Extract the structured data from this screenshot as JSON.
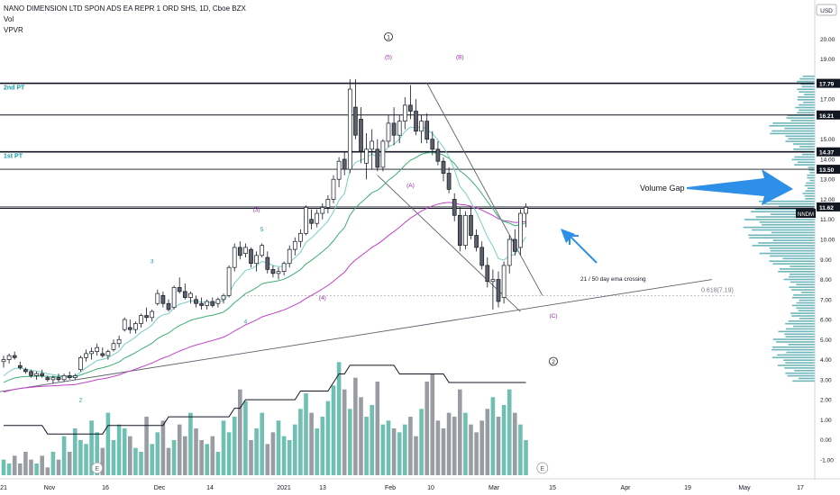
{
  "header": {
    "title": "NANO DIMENSION LTD SPON ADS EA REPR 1 ORD SHS, 1D, Cboe BZX",
    "indicator_vol": "Vol",
    "indicator_vpvr": "VPVR"
  },
  "colors": {
    "up_candle": "#ffffff",
    "down_candle": "#5d606b",
    "candle_border": "#131722",
    "vol_up": "#6fbfb3",
    "vol_down": "#9a9ca3",
    "ema_fast": "#79cec3",
    "ema_slow": "#3cae74",
    "ema_long": "#c043c7",
    "vpvr": "#3d9ea3",
    "arrow_blue": "#2d8fe8",
    "wave_label": "#9c27b0",
    "teal_label": "#159aa2",
    "price_tag_bg": "#131722"
  },
  "chart_data": {
    "type": "candlestick",
    "ylim": [
      -1.5,
      21.5
    ],
    "price_axis": {
      "unit_label": "USD",
      "ticks": [
        "20.00",
        "19.00",
        "17.00",
        "15.00",
        "14.00",
        "13.00",
        "12.00",
        "11.00",
        "10.00",
        "9.00",
        "8.00",
        "7.00",
        "6.00",
        "5.00",
        "4.00",
        "3.00",
        "2.00",
        "1.00",
        "0.00",
        "-1.00"
      ],
      "tagged": [
        {
          "label": "17.79",
          "value": 17.79
        },
        {
          "label": "16.21",
          "value": 16.21
        },
        {
          "label": "14.37",
          "value": 14.37
        },
        {
          "label": "13.50",
          "value": 13.5
        },
        {
          "label": "11.62",
          "value": 11.62
        }
      ],
      "symbol_tag": "NNDM"
    },
    "time_axis": {
      "ticks": [
        "21",
        "Nov",
        "16",
        "Dec",
        "14",
        "2021",
        "13",
        "Feb",
        "10",
        "Mar",
        "15",
        "Apr",
        "19",
        "May",
        "17"
      ]
    },
    "horizontal_levels": [
      17.79,
      16.21,
      14.37,
      13.5,
      11.62,
      11.55
    ],
    "level_labels": [
      {
        "text": "2nd PT",
        "value": 17.79
      },
      {
        "text": "1st PT",
        "value": 14.37
      }
    ],
    "fib_level": {
      "text": "0.618(7.19)",
      "value": 7.19
    },
    "candles": [
      [
        3.9,
        4.2,
        3.6,
        4.0
      ],
      [
        4.0,
        4.3,
        3.8,
        4.2
      ],
      [
        4.2,
        4.4,
        4.0,
        4.1
      ],
      [
        3.7,
        3.9,
        3.5,
        3.6
      ],
      [
        3.5,
        3.6,
        3.3,
        3.4
      ],
      [
        3.4,
        3.5,
        3.1,
        3.2
      ],
      [
        3.2,
        3.4,
        3.0,
        3.3
      ],
      [
        3.3,
        3.5,
        3.1,
        3.2
      ],
      [
        3.1,
        3.2,
        2.9,
        3.0
      ],
      [
        3.0,
        3.2,
        2.8,
        3.1
      ],
      [
        3.1,
        3.3,
        2.9,
        3.0
      ],
      [
        3.0,
        3.3,
        2.9,
        3.2
      ],
      [
        3.2,
        3.4,
        3.0,
        3.1
      ],
      [
        3.1,
        3.3,
        3.0,
        3.2
      ],
      [
        3.5,
        4.2,
        3.4,
        4.1
      ],
      [
        4.1,
        4.5,
        3.9,
        4.3
      ],
      [
        4.3,
        4.6,
        4.0,
        4.4
      ],
      [
        4.4,
        4.8,
        4.2,
        4.6
      ],
      [
        4.3,
        4.6,
        4.1,
        4.2
      ],
      [
        4.2,
        4.5,
        4.0,
        4.4
      ],
      [
        4.5,
        5.0,
        4.4,
        4.8
      ],
      [
        4.8,
        5.2,
        4.6,
        5.0
      ],
      [
        5.5,
        6.1,
        5.4,
        6.0
      ],
      [
        5.6,
        6.0,
        5.3,
        5.5
      ],
      [
        5.5,
        5.9,
        5.3,
        5.8
      ],
      [
        5.8,
        6.3,
        5.6,
        6.2
      ],
      [
        6.2,
        6.6,
        5.9,
        6.1
      ],
      [
        6.1,
        6.5,
        5.9,
        6.4
      ],
      [
        6.8,
        7.5,
        6.7,
        7.3
      ],
      [
        7.2,
        7.4,
        6.6,
        6.8
      ],
      [
        6.8,
        7.0,
        6.4,
        6.5
      ],
      [
        6.6,
        7.7,
        6.5,
        7.6
      ],
      [
        7.6,
        8.1,
        7.3,
        7.4
      ],
      [
        7.4,
        7.8,
        7.0,
        7.1
      ],
      [
        7.1,
        7.4,
        6.8,
        7.3
      ],
      [
        7.0,
        7.2,
        6.6,
        6.8
      ],
      [
        6.8,
        7.1,
        6.5,
        6.7
      ],
      [
        6.7,
        7.0,
        6.5,
        6.9
      ],
      [
        6.9,
        7.1,
        6.6,
        6.7
      ],
      [
        6.8,
        7.1,
        6.6,
        7.0
      ],
      [
        7.0,
        7.3,
        6.8,
        7.2
      ],
      [
        7.2,
        8.7,
        7.1,
        8.6
      ],
      [
        8.6,
        9.8,
        8.4,
        9.6
      ],
      [
        9.6,
        9.9,
        9.0,
        9.2
      ],
      [
        9.3,
        9.8,
        9.1,
        9.6
      ],
      [
        9.5,
        9.6,
        8.6,
        8.8
      ],
      [
        8.8,
        9.4,
        8.4,
        9.2
      ],
      [
        9.2,
        9.8,
        9.1,
        9.7
      ],
      [
        9.1,
        9.4,
        8.3,
        8.5
      ],
      [
        8.5,
        8.7,
        8.1,
        8.3
      ],
      [
        8.3,
        8.6,
        8.0,
        8.4
      ],
      [
        8.4,
        8.9,
        8.2,
        8.8
      ],
      [
        8.8,
        9.7,
        8.6,
        9.5
      ],
      [
        9.5,
        10.1,
        9.2,
        9.9
      ],
      [
        9.9,
        10.5,
        9.6,
        10.3
      ],
      [
        10.3,
        11.7,
        10.2,
        11.6
      ],
      [
        11.0,
        11.5,
        10.5,
        10.8
      ],
      [
        10.8,
        11.5,
        10.6,
        11.3
      ],
      [
        11.3,
        11.8,
        11.0,
        11.6
      ],
      [
        11.6,
        12.2,
        11.3,
        12.0
      ],
      [
        12.0,
        13.2,
        11.8,
        13.0
      ],
      [
        13.0,
        14.1,
        12.6,
        13.9
      ],
      [
        14.0,
        14.4,
        13.2,
        13.5
      ],
      [
        13.5,
        18.0,
        13.3,
        17.5
      ],
      [
        16.6,
        18.0,
        15.0,
        15.2
      ],
      [
        16.0,
        16.6,
        13.8,
        14.4
      ],
      [
        13.8,
        15.3,
        13.0,
        14.5
      ],
      [
        14.5,
        15.5,
        13.5,
        14.9
      ],
      [
        14.5,
        15.0,
        13.4,
        13.6
      ],
      [
        13.6,
        15.0,
        13.4,
        14.9
      ],
      [
        14.9,
        16.2,
        14.6,
        15.8
      ],
      [
        15.8,
        16.6,
        14.7,
        15.2
      ],
      [
        15.2,
        16.2,
        14.8,
        15.9
      ],
      [
        15.9,
        17.1,
        15.5,
        16.7
      ],
      [
        16.7,
        17.7,
        16.0,
        16.4
      ],
      [
        16.4,
        17.0,
        15.2,
        15.4
      ],
      [
        15.4,
        16.2,
        14.8,
        15.9
      ],
      [
        15.9,
        16.3,
        14.8,
        15.0
      ],
      [
        15.0,
        15.4,
        14.2,
        14.5
      ],
      [
        14.5,
        14.9,
        13.7,
        13.9
      ],
      [
        13.9,
        14.1,
        12.9,
        13.3
      ],
      [
        13.3,
        13.6,
        12.3,
        12.5
      ],
      [
        12.0,
        12.3,
        10.9,
        11.2
      ],
      [
        11.2,
        11.6,
        9.4,
        9.7
      ],
      [
        9.7,
        11.4,
        9.5,
        11.2
      ],
      [
        11.2,
        11.6,
        10.0,
        10.2
      ],
      [
        10.2,
        10.5,
        9.4,
        9.6
      ],
      [
        9.6,
        9.9,
        8.5,
        8.7
      ],
      [
        8.7,
        9.1,
        7.6,
        7.9
      ],
      [
        7.9,
        8.5,
        6.5,
        8.0
      ],
      [
        8.0,
        8.4,
        6.6,
        6.9
      ],
      [
        7.1,
        8.9,
        6.8,
        8.7
      ],
      [
        8.7,
        10.2,
        8.3,
        10.0
      ],
      [
        10.0,
        10.5,
        9.2,
        9.4
      ],
      [
        9.6,
        11.5,
        9.2,
        11.3
      ],
      [
        11.3,
        11.8,
        10.6,
        11.6
      ]
    ],
    "volume": {
      "ylim": [
        0,
        30
      ],
      "values": [
        4,
        3,
        5,
        3,
        6,
        4,
        3,
        5,
        2,
        6,
        4,
        10,
        6,
        12,
        9,
        8,
        14,
        11,
        7,
        16,
        9,
        13,
        12,
        10,
        7,
        6,
        15,
        8,
        11,
        14,
        7,
        9,
        13,
        10,
        16,
        12,
        9,
        8,
        10,
        6,
        14,
        11,
        15,
        22,
        19,
        9,
        12,
        16,
        8,
        11,
        14,
        10,
        9,
        13,
        17,
        21,
        16,
        12,
        15,
        19,
        23,
        29,
        22,
        17,
        25,
        20,
        15,
        18,
        24,
        13,
        14,
        12,
        11,
        13,
        15,
        10,
        17,
        24,
        26,
        14,
        12,
        16,
        15,
        22,
        16,
        13,
        11,
        14,
        17,
        20,
        15,
        18,
        22,
        16,
        13,
        9
      ],
      "avg": [
        10,
        10,
        10,
        10,
        10,
        10,
        10,
        10,
        9,
        9,
        9,
        9,
        9,
        9,
        9,
        9,
        9,
        9,
        9,
        10,
        10,
        10,
        10,
        10,
        10,
        10,
        10,
        10,
        10,
        10,
        11,
        11,
        11,
        11,
        11,
        11,
        11,
        11,
        11,
        11,
        11,
        11,
        12,
        12,
        13,
        13,
        13,
        13,
        13,
        13,
        13,
        13,
        13,
        13,
        14,
        14,
        14,
        14,
        14,
        14,
        15,
        16,
        16,
        17,
        17,
        17,
        17,
        17,
        17,
        17,
        17,
        17,
        16,
        16,
        16,
        16,
        16,
        16,
        16,
        16,
        16,
        15,
        15,
        15,
        15,
        15,
        15,
        15,
        15,
        15,
        15,
        15,
        15,
        15,
        15,
        15
      ]
    },
    "wave_labels": [
      {
        "text": "1",
        "circled": true,
        "x": 70,
        "y": 20.0
      },
      {
        "text": "(5)",
        "x": 70,
        "y": 19.0
      },
      {
        "text": "(B)",
        "x": 83,
        "y": 19.0
      },
      {
        "text": "(A)",
        "x": 74,
        "y": 12.6
      },
      {
        "text": "(3)",
        "x": 46,
        "y": 11.4
      },
      {
        "text": "5",
        "x": 47,
        "y": 10.4
      },
      {
        "text": "3",
        "x": 27,
        "y": 8.8
      },
      {
        "text": "(4)",
        "x": 58,
        "y": 7.0
      },
      {
        "text": "4",
        "x": 44,
        "y": 5.8
      },
      {
        "text": "(C)",
        "x": 100,
        "y": 6.1
      },
      {
        "text": "2",
        "circled": true,
        "x": 100,
        "y": 3.8
      },
      {
        "text": "2",
        "x": 14,
        "y": 1.9
      }
    ],
    "annotations": [
      {
        "text": "Volume Gap"
      },
      {
        "text": "21 / 50 day ema crossing"
      }
    ],
    "earnings_markers": [
      "E",
      "E"
    ]
  }
}
